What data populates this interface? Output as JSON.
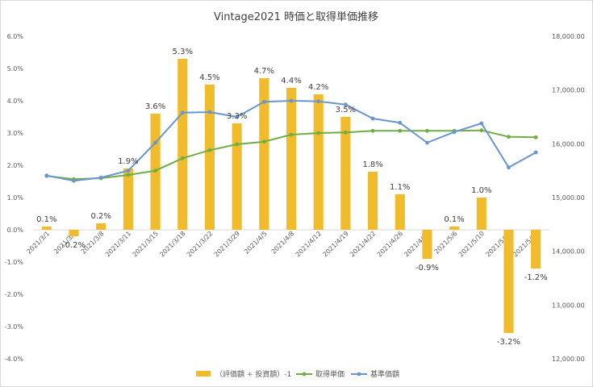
{
  "chart_data": {
    "type": "bar",
    "title": "Vintage2021 時価と取得単価推移",
    "categories": [
      "2021/3/1",
      "2021/3/4",
      "2021/3/8",
      "2021/3/11",
      "2021/3/15",
      "2021/3/18",
      "2021/3/22",
      "2021/3/29",
      "2021/4/5",
      "2021/4/8",
      "2021/4/12",
      "2021/4/19",
      "2021/4/22",
      "2021/4/26",
      "2021/4/30",
      "2021/5/6",
      "2021/5/10",
      "2021/5/17",
      "2021/5/20"
    ],
    "y_left": {
      "min": -4.0,
      "max": 6.0,
      "step": 1.0,
      "tick_labels": [
        "-4.0%",
        "-3.0%",
        "-2.0%",
        "-1.0%",
        "0.0%",
        "1.0%",
        "2.0%",
        "3.0%",
        "4.0%",
        "5.0%",
        "6.0%"
      ]
    },
    "y_right": {
      "min": 12000,
      "max": 18000,
      "step": 1000,
      "tick_labels": [
        "12,000.00",
        "13,000.00",
        "14,000.00",
        "15,000.00",
        "16,000.00",
        "17,000.00",
        "18,000.00"
      ]
    },
    "series": [
      {
        "name": "（評価額 ÷ 投資額）-1",
        "kind": "bar",
        "axis": "left",
        "color": "#f0bc2b",
        "values": [
          0.1,
          -0.2,
          0.2,
          1.9,
          3.6,
          5.3,
          4.5,
          3.3,
          4.7,
          4.4,
          4.2,
          3.5,
          1.8,
          1.1,
          -0.9,
          0.1,
          1.0,
          -3.2,
          -1.2
        ],
        "labels": [
          "0.1%",
          "-0.2%",
          "0.2%",
          "1.9%",
          "3.6%",
          "5.3%",
          "4.5%",
          "3.3%",
          "4.7%",
          "4.4%",
          "4.2%",
          "3.5%",
          "1.8%",
          "1.1%",
          "-0.9%",
          "0.1%",
          "1.0%",
          "-3.2%",
          "-1.2%"
        ]
      },
      {
        "name": "取得単価",
        "kind": "line",
        "axis": "right",
        "color": "#70ad47",
        "values": [
          15400,
          15340,
          15360,
          15420,
          15500,
          15730,
          15880,
          15990,
          16040,
          16170,
          16200,
          16210,
          16240,
          16240,
          16240,
          16240,
          16250,
          16130,
          16120
        ]
      },
      {
        "name": "基準価額",
        "kind": "line",
        "axis": "right",
        "color": "#6b96cc",
        "values": [
          15410,
          15310,
          15370,
          15500,
          16020,
          16580,
          16590,
          16500,
          16780,
          16800,
          16790,
          16730,
          16470,
          16390,
          16020,
          16220,
          16380,
          15560,
          15840
        ]
      }
    ],
    "legend": {
      "position": "bottom",
      "entries": [
        "（評価額 ÷ 投資額）-1",
        "取得単価",
        "基準価額"
      ]
    },
    "grid": false
  }
}
